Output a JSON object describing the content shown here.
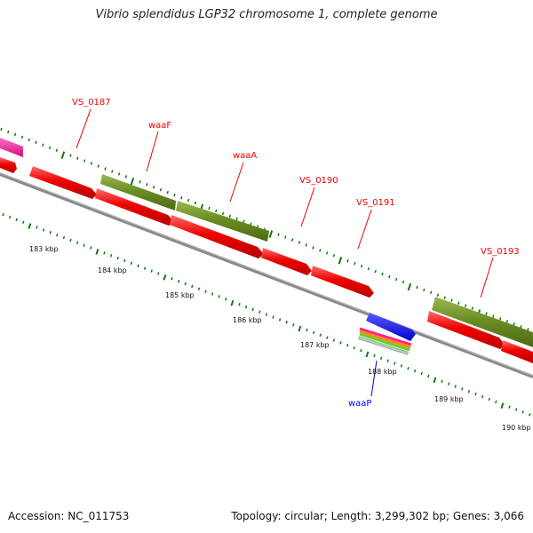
{
  "title": "Vibrio splendidus LGP32 chromosome 1, complete genome",
  "accession_line": "Accession: NC_011753",
  "summary_line": "Topology: circular; Length: 3,299,302 bp; Genes: 3,066",
  "colors": {
    "cds_forward": "#ee0000",
    "cds_green": "#6b8e23",
    "cds_pink": "#ee1188",
    "trna_blue": "#0000ee",
    "label_red": "#ee0000",
    "label_blue": "#0000ee",
    "backbone": "#888888",
    "tick_green": "#117711"
  },
  "kbp_labels": [
    "183 kbp",
    "184 kbp",
    "185 kbp",
    "186 kbp",
    "187 kbp",
    "188 kbp",
    "189 kbp",
    "190 kbp"
  ],
  "gene_labels": [
    {
      "name": "VS_0187",
      "color": "red"
    },
    {
      "name": "waaF",
      "color": "red"
    },
    {
      "name": "waaA",
      "color": "red"
    },
    {
      "name": "VS_0190",
      "color": "red"
    },
    {
      "name": "VS_0191",
      "color": "red"
    },
    {
      "name": "VS_0193",
      "color": "red"
    },
    {
      "name": "waaP",
      "color": "blue"
    }
  ]
}
